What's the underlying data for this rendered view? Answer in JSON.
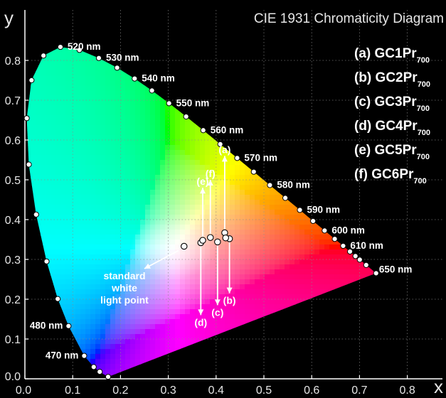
{
  "chart_data": {
    "type": "scatter",
    "title": "CIE 1931 Chromaticity Diagram",
    "xlabel": "x",
    "ylabel": "y",
    "xlim": [
      0.0,
      0.83
    ],
    "ylim": [
      0.0,
      0.85
    ],
    "grid": "dotted",
    "x_ticks": [
      "0.0",
      "0.1",
      "0.2",
      "0.3",
      "0.4",
      "0.5",
      "0.6",
      "0.7",
      "0.8"
    ],
    "y_ticks": [
      "0.0",
      "0.1",
      "0.2",
      "0.3",
      "0.4",
      "0.5",
      "0.6",
      "0.7",
      "0.8"
    ],
    "locus_points": [
      [
        0.1741,
        0.005
      ],
      [
        0.1566,
        0.0177
      ],
      [
        0.144,
        0.0297
      ],
      [
        0.1241,
        0.0578
      ],
      [
        0.0913,
        0.1327
      ],
      [
        0.0687,
        0.2007
      ],
      [
        0.0454,
        0.295
      ],
      [
        0.0235,
        0.4127
      ],
      [
        0.0082,
        0.5384
      ],
      [
        0.0039,
        0.6548
      ],
      [
        0.0139,
        0.7502
      ],
      [
        0.0389,
        0.812
      ],
      [
        0.0743,
        0.8338
      ],
      [
        0.1142,
        0.8262
      ],
      [
        0.1547,
        0.8059
      ],
      [
        0.1929,
        0.7816
      ],
      [
        0.2296,
        0.7543
      ],
      [
        0.2658,
        0.7243
      ],
      [
        0.3016,
        0.6923
      ],
      [
        0.3373,
        0.6589
      ],
      [
        0.3731,
        0.6245
      ],
      [
        0.4087,
        0.5896
      ],
      [
        0.4441,
        0.5547
      ],
      [
        0.4788,
        0.5202
      ],
      [
        0.5125,
        0.4866
      ],
      [
        0.5448,
        0.4544
      ],
      [
        0.5752,
        0.4242
      ],
      [
        0.6029,
        0.3965
      ],
      [
        0.627,
        0.3725
      ],
      [
        0.6482,
        0.3514
      ],
      [
        0.6658,
        0.334
      ],
      [
        0.6801,
        0.3197
      ],
      [
        0.6915,
        0.3083
      ],
      [
        0.7006,
        0.2993
      ],
      [
        0.714,
        0.2859
      ],
      [
        0.7347,
        0.2653
      ]
    ],
    "wavelength_labels": [
      {
        "text": "520 nm",
        "x": 0.0743,
        "y": 0.8338
      },
      {
        "text": "530 nm",
        "x": 0.1547,
        "y": 0.8059
      },
      {
        "text": "540 nm",
        "x": 0.2296,
        "y": 0.7543
      },
      {
        "text": "550 nm",
        "x": 0.3016,
        "y": 0.6923
      },
      {
        "text": "560 nm",
        "x": 0.3731,
        "y": 0.6245
      },
      {
        "text": "570 nm",
        "x": 0.4441,
        "y": 0.5547
      },
      {
        "text": "580 nm",
        "x": 0.5125,
        "y": 0.4866
      },
      {
        "text": "590 nm",
        "x": 0.5752,
        "y": 0.4242
      },
      {
        "text": "600 nm",
        "x": 0.627,
        "y": 0.3725
      },
      {
        "text": "610 nm",
        "x": 0.6658,
        "y": 0.334
      },
      {
        "text": "650 nm",
        "x": 0.726,
        "y": 0.274
      },
      {
        "text": "480 nm",
        "x": 0.0913,
        "y": 0.1327
      },
      {
        "text": "470 nm",
        "x": 0.1241,
        "y": 0.0578
      }
    ],
    "legend_entries": [
      {
        "tag": "(a)",
        "name": "GC1Pr",
        "sub": "700"
      },
      {
        "tag": "(b)",
        "name": "GC2Pr",
        "sub": "700"
      },
      {
        "tag": "(c)",
        "name": "GC3Pr",
        "sub": "700"
      },
      {
        "tag": "(d)",
        "name": "GC4Pr",
        "sub": "700"
      },
      {
        "tag": "(e)",
        "name": "GC5Pr",
        "sub": "700"
      },
      {
        "tag": "(f)",
        "name": "GC6Pr",
        "sub": "700"
      }
    ],
    "samples": [
      {
        "label": "(a)",
        "x": 0.418,
        "y": 0.367,
        "arrow_to": [
          0.418,
          0.56
        ]
      },
      {
        "label": "(b)",
        "x": 0.428,
        "y": 0.352,
        "arrow_to": [
          0.428,
          0.215
        ]
      },
      {
        "label": "(c)",
        "x": 0.403,
        "y": 0.344,
        "arrow_to": [
          0.403,
          0.185
        ]
      },
      {
        "label": "(d)",
        "x": 0.368,
        "y": 0.342,
        "arrow_to": [
          0.368,
          0.16
        ]
      },
      {
        "label": "(e)",
        "x": 0.372,
        "y": 0.348,
        "arrow_to": [
          0.372,
          0.48
        ]
      },
      {
        "label": "(f)",
        "x": 0.388,
        "y": 0.355,
        "arrow_to": [
          0.388,
          0.5
        ]
      }
    ],
    "extra_points": [
      {
        "x": 0.42,
        "y": 0.354
      },
      {
        "x": 0.333,
        "y": 0.333
      }
    ],
    "white_point": {
      "x": 0.333,
      "y": 0.333
    },
    "white_point_label": [
      "standard",
      "white",
      "light point"
    ]
  }
}
